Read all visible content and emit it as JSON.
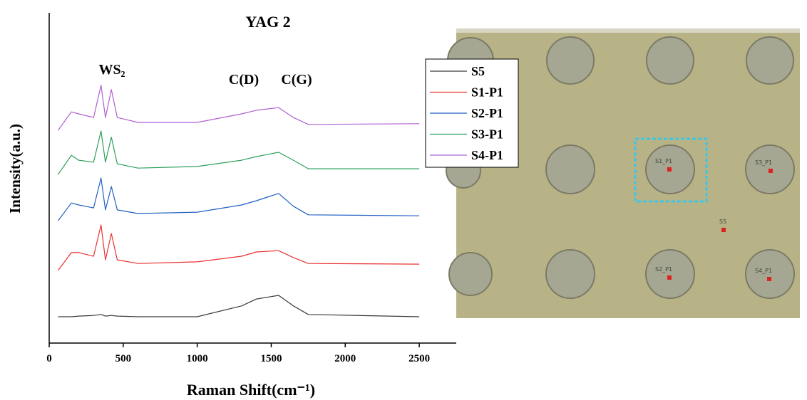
{
  "chart_data": {
    "type": "line",
    "title": "YAG 2",
    "xlabel": "Raman Shift(cm⁻¹)",
    "ylabel": "Intensity(a.u.)",
    "annotations": [
      "WS₂",
      "C(D)",
      "C(G)"
    ],
    "x": [
      60,
      150,
      200,
      300,
      350,
      380,
      420,
      460,
      600,
      1000,
      1300,
      1400,
      1550,
      1650,
      1750,
      2500
    ],
    "series": [
      {
        "name": "S5",
        "color": "#3a3a3a",
        "values": [
          8.0,
          8.0,
          8.2,
          8.4,
          8.7,
          8.2,
          8.4,
          8.2,
          8.0,
          8.0,
          11.3,
          13.4,
          14.5,
          11.3,
          8.7,
          8.0
        ]
      },
      {
        "name": "S1-P1",
        "color": "#e8312f",
        "values": [
          22.1,
          27.5,
          27.5,
          26.4,
          35.9,
          25.3,
          33.3,
          25.3,
          24.2,
          24.7,
          26.4,
          27.7,
          28.1,
          26.0,
          24.2,
          24.0
        ]
      },
      {
        "name": "S2-P1",
        "color": "#1f5fc4",
        "values": [
          37.2,
          42.6,
          42.0,
          41.1,
          50.2,
          40.5,
          47.6,
          40.5,
          39.4,
          39.8,
          42.0,
          43.3,
          45.5,
          41.6,
          39.0,
          38.7
        ]
      },
      {
        "name": "S3-P1",
        "color": "#2ca05a",
        "values": [
          51.3,
          57.1,
          55.6,
          55.0,
          64.5,
          55.0,
          62.6,
          54.5,
          53.2,
          53.7,
          55.6,
          56.7,
          58.0,
          55.6,
          53.0,
          53.0
        ]
      },
      {
        "name": "S4-P1",
        "color": "#b060d0",
        "values": [
          64.7,
          70.3,
          69.7,
          68.6,
          78.4,
          68.6,
          77.1,
          68.6,
          67.1,
          67.1,
          69.7,
          70.8,
          71.6,
          68.6,
          66.5,
          66.7
        ]
      }
    ],
    "xlim": [
      0,
      2750
    ],
    "xticks": [
      0,
      500,
      1000,
      1500,
      2000,
      2500
    ],
    "ylim": [
      0,
      100
    ]
  },
  "image": {
    "labels": [
      "S1_P1",
      "S3_P1",
      "S5",
      "S2_P1",
      "S4_P1"
    ]
  }
}
